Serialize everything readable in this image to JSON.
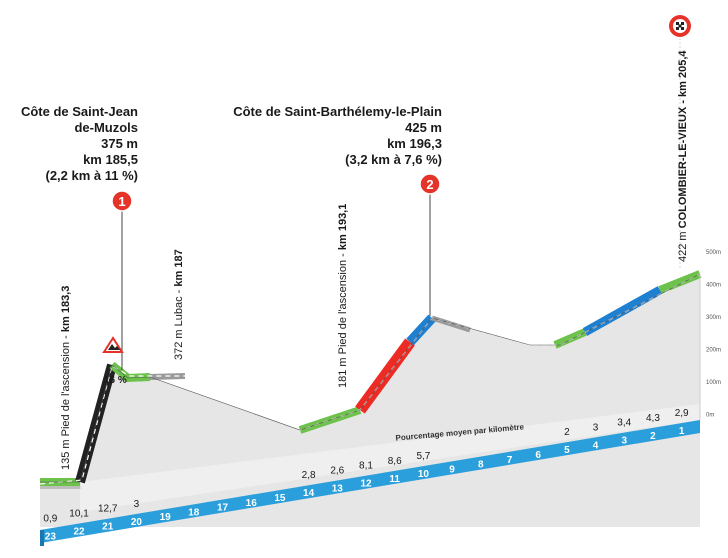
{
  "climbs": [
    {
      "number": "1",
      "name_line1": "Côte de Saint-Jean",
      "name_line2": "de-Muzols",
      "altitude": "375 m",
      "km": "km 185,5",
      "detail": "(2,2 km à 11 %)",
      "badge_color": "#e63329"
    },
    {
      "number": "2",
      "name_line1": "Côte de Saint-Barthélemy-le-Plain",
      "name_line2": "",
      "altitude": "425 m",
      "km": "km 196,3",
      "detail": "(3,2 km à 7,6 %)",
      "badge_color": "#e63329"
    }
  ],
  "points": [
    {
      "alt_label": "135 m",
      "name": "Pied de l'ascension",
      "km": "km 183,3"
    },
    {
      "alt_label": "372 m",
      "name": "Lubac",
      "km": "km 187"
    },
    {
      "alt_label": "181 m",
      "name": "Pied de l'ascension",
      "km": "km 193,1"
    },
    {
      "alt_label": "422 m",
      "name": "COLOMBIER-LE-VIEUX",
      "km": "km 205,4"
    }
  ],
  "warning": {
    "label": "16 %",
    "icon": "steep-warning-icon"
  },
  "finish_icon": "finish-flag-icon",
  "avg_gradient_label": "Pourcentage moyen par kilomètre",
  "altitude_axis": [
    "500m",
    "400m",
    "300m",
    "200m",
    "100m",
    "0m"
  ],
  "km_to_go": [
    "23",
    "22",
    "21",
    "20",
    "19",
    "18",
    "17",
    "16",
    "15",
    "14",
    "13",
    "12",
    "11",
    "10",
    "9",
    "8",
    "7",
    "6",
    "5",
    "4",
    "3",
    "2",
    "1"
  ],
  "gradients": [
    "0,9",
    "10,1",
    "12,7",
    "3",
    "",
    "",
    "",
    "",
    "",
    "2,8",
    "2,6",
    "8,1",
    "8,6",
    "5,7",
    "",
    "",
    "",
    "",
    "2",
    "3",
    "3,4",
    "4,3",
    "2,9"
  ],
  "colors": {
    "profile_fill": "#e3e3e3",
    "ridge_green": "#6cc24a",
    "ridge_blue": "#1f7fd0",
    "ridge_red": "#ee2a24",
    "ridge_black": "#222222",
    "km_band": "#2a9fdb"
  }
}
